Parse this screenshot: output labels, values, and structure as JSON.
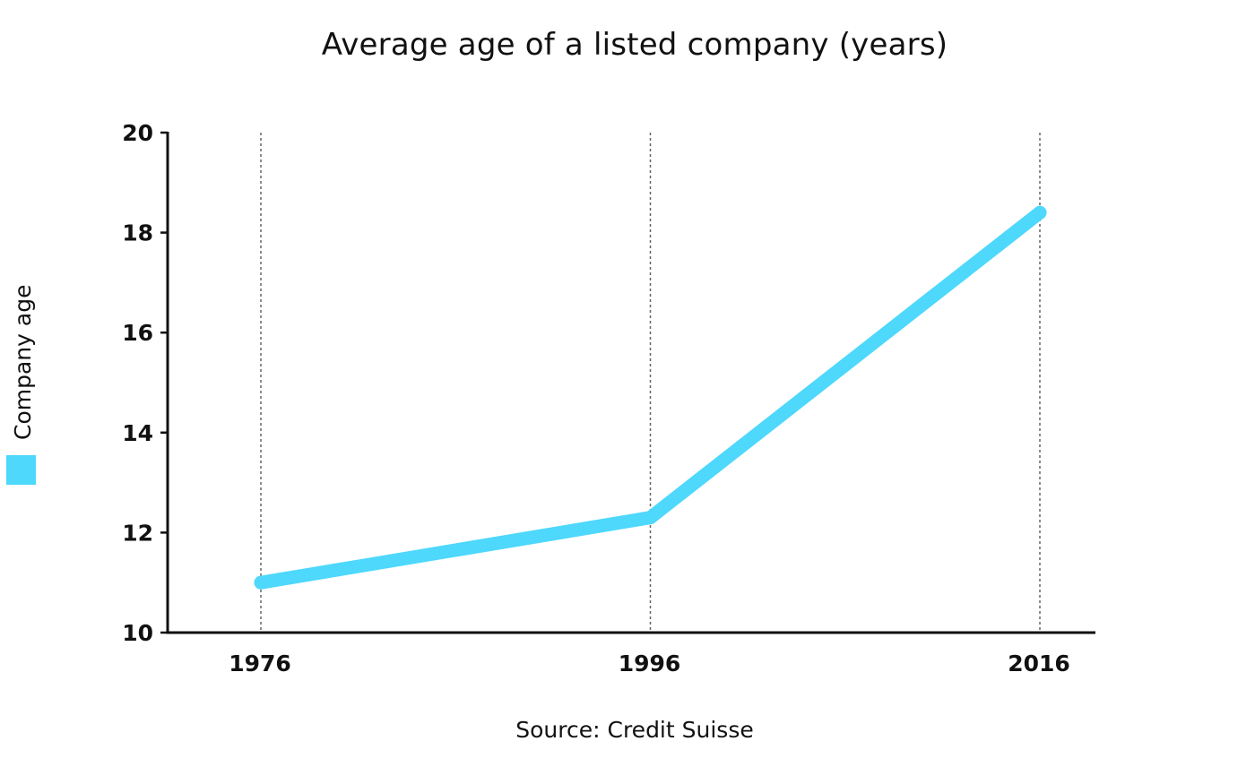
{
  "chart_data": {
    "type": "line",
    "title": "Average age of a listed company (years)",
    "x": [
      1976,
      1996,
      2016
    ],
    "x_tick_labels": [
      "1976",
      "1996",
      "2016"
    ],
    "series": [
      {
        "name": "Company age",
        "values": [
          11.0,
          12.3,
          18.4
        ],
        "color": "#4dd8fc"
      }
    ],
    "ylim": [
      10,
      20
    ],
    "y_ticks": [
      10,
      12,
      14,
      16,
      18,
      20
    ],
    "y_tick_labels": [
      "10",
      "12",
      "14",
      "16",
      "18",
      "20"
    ],
    "xlabel": "",
    "ylabel": "",
    "grid": "vertical dotted lines at each x category",
    "legend_position": "left, rotated vertical"
  },
  "source": "Source: Credit Suisse",
  "colors": {
    "line": "#4dd8fc",
    "axis": "#111111",
    "grid": "#666666"
  }
}
